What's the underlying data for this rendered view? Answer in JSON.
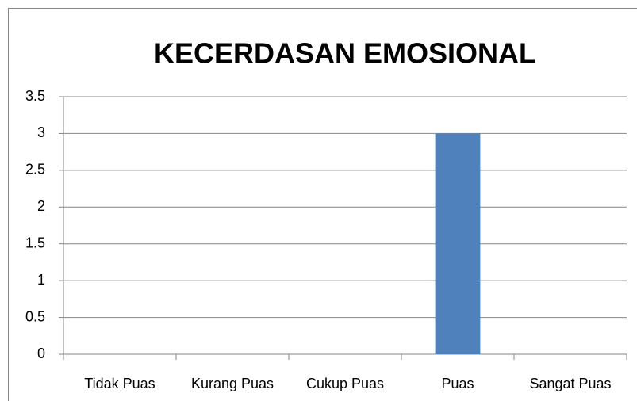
{
  "chart_data": {
    "type": "bar",
    "title": "KECERDASAN EMOSIONAL",
    "categories": [
      "Tidak Puas",
      "Kurang Puas",
      "Cukup Puas",
      "Puas",
      "Sangat Puas"
    ],
    "values": [
      0,
      0,
      0,
      3,
      0
    ],
    "color": "#4f81bd",
    "ylim": [
      0,
      3.5
    ],
    "yticks": [
      0,
      0.5,
      1,
      1.5,
      2,
      2.5,
      3,
      3.5
    ],
    "grid": true
  }
}
